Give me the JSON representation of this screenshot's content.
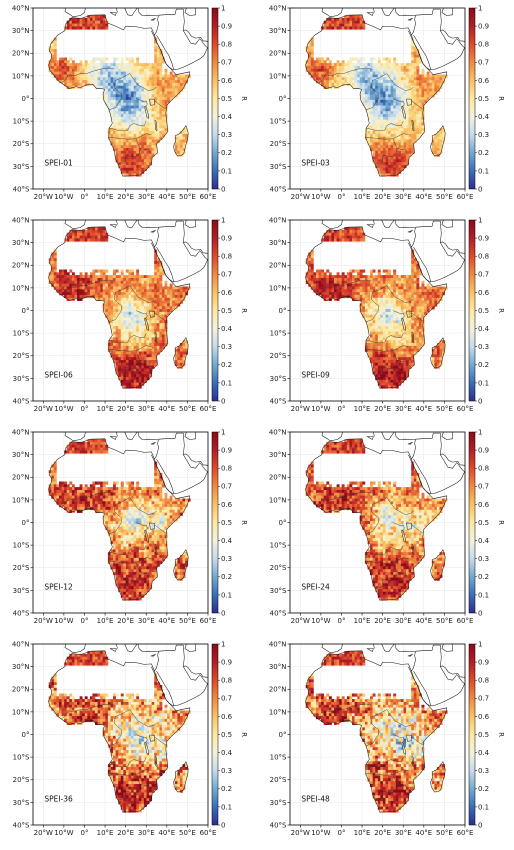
{
  "figure": {
    "panels": [
      {
        "label": "SPEI-01",
        "pattern": "short"
      },
      {
        "label": "SPEI-03",
        "pattern": "short"
      },
      {
        "label": "SPEI-06",
        "pattern": "mid"
      },
      {
        "label": "SPEI-09",
        "pattern": "mid"
      },
      {
        "label": "SPEI-12",
        "pattern": "long"
      },
      {
        "label": "SPEI-24",
        "pattern": "long"
      },
      {
        "label": "SPEI-36",
        "pattern": "vlong"
      },
      {
        "label": "SPEI-48",
        "pattern": "vlong"
      }
    ],
    "lat_ticks": [
      "40°N",
      "30°N",
      "20°N",
      "10°N",
      "0°",
      "10°S",
      "20°S",
      "30°S",
      "40°S"
    ],
    "lon_ticks": [
      "20°W",
      "10°W",
      "0°",
      "10°E",
      "20°E",
      "30°E",
      "40°E",
      "50°E",
      "60°E"
    ],
    "colorbar": {
      "label": "R",
      "ticks": [
        "0",
        "0.1",
        "0.2",
        "0.3",
        "0.4",
        "0.5",
        "0.6",
        "0.7",
        "0.8",
        "0.9",
        "1"
      ],
      "colors": [
        "#2b2f8f",
        "#3b6fb6",
        "#74a9cf",
        "#c6dbef",
        "#f2f2dc",
        "#fde9a1",
        "#f9c264",
        "#f08a42",
        "#dd4b2c",
        "#b21f28",
        "#8b0a1a"
      ]
    }
  }
}
